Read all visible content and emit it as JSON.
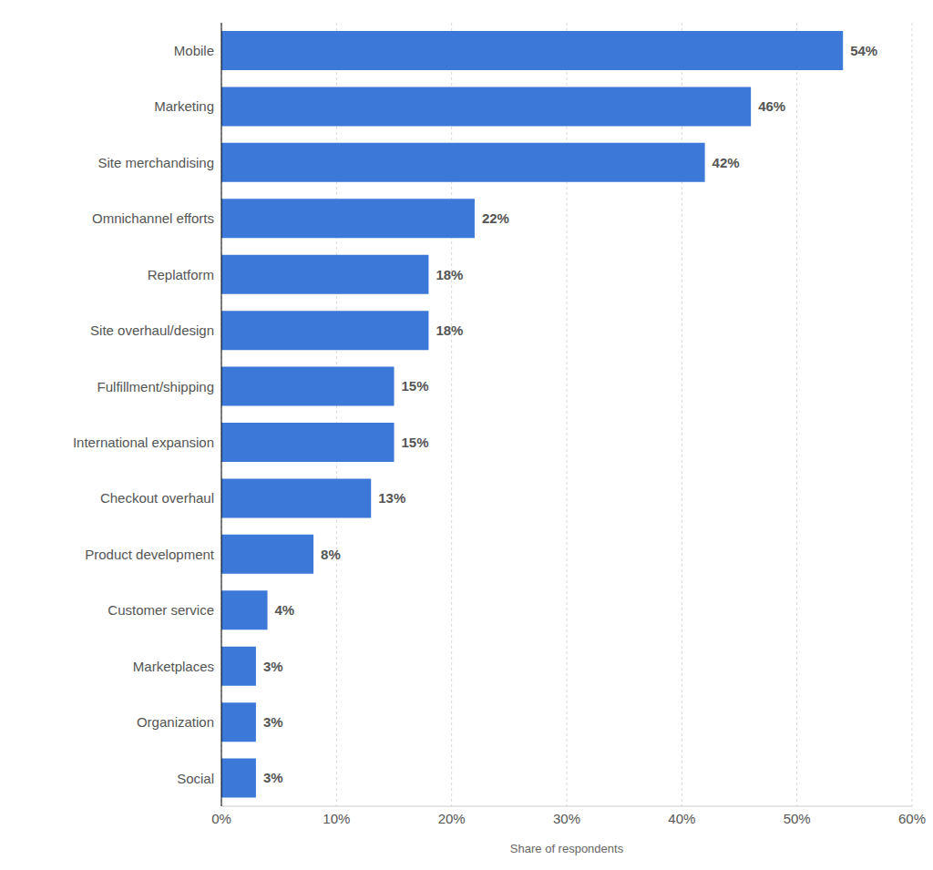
{
  "chart_data": {
    "type": "bar",
    "orientation": "horizontal",
    "categories": [
      "Mobile",
      "Marketing",
      "Site merchandising",
      "Omnichannel efforts",
      "Replatform",
      "Site overhaul/design",
      "Fulfillment/shipping",
      "International expansion",
      "Checkout overhaul",
      "Product development",
      "Customer service",
      "Marketplaces",
      "Organization",
      "Social"
    ],
    "values": [
      54,
      46,
      42,
      22,
      18,
      18,
      15,
      15,
      13,
      8,
      4,
      3,
      3,
      3
    ],
    "value_labels": [
      "54%",
      "46%",
      "42%",
      "22%",
      "18%",
      "18%",
      "15%",
      "15%",
      "13%",
      "8%",
      "4%",
      "3%",
      "3%",
      "3%"
    ],
    "data_labels": true,
    "color": "#3b78d8",
    "xlabel": "Share of respondents",
    "xlim": [
      0,
      60
    ],
    "xticks": [
      {
        "value": 0,
        "label": "0%"
      },
      {
        "value": 10,
        "label": "10%"
      },
      {
        "value": 20,
        "label": "20%"
      },
      {
        "value": 30,
        "label": "30%"
      },
      {
        "value": 40,
        "label": "40%"
      },
      {
        "value": 50,
        "label": "50%"
      },
      {
        "value": 60,
        "label": "60%"
      }
    ],
    "grid": true
  }
}
